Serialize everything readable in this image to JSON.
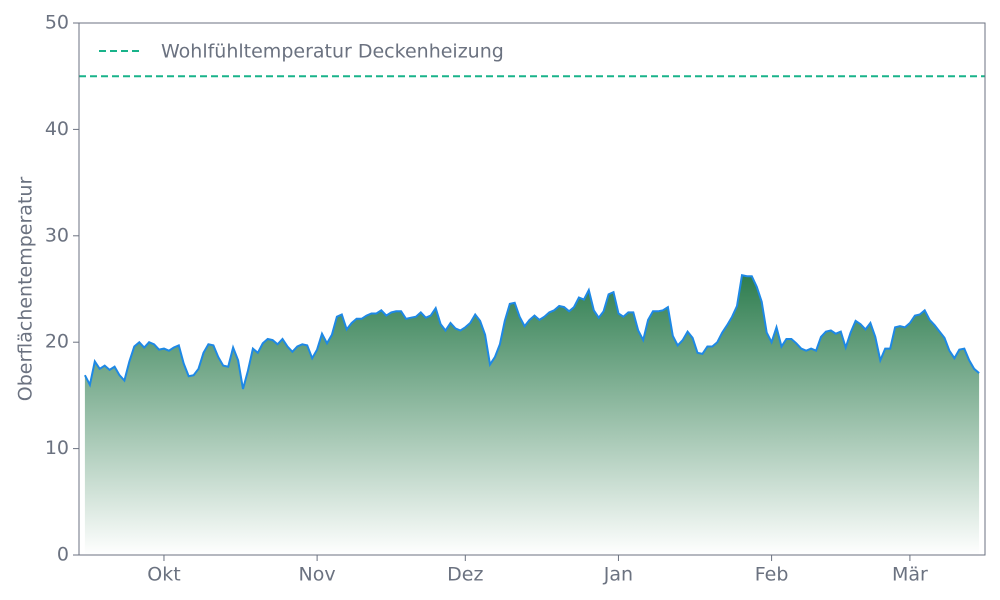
{
  "chart_data": {
    "type": "area",
    "y_label": "Oberflächentemperatur",
    "x": [
      -16,
      -15,
      -14,
      -13,
      -12,
      -11,
      -10,
      -9,
      -8,
      -7,
      -6,
      -5,
      -4,
      -3,
      -2,
      -1,
      0,
      1,
      2,
      3,
      4,
      5,
      6,
      7,
      8,
      9,
      10,
      11,
      12,
      13,
      14,
      15,
      16,
      17,
      18,
      19,
      20,
      21,
      22,
      23,
      24,
      25,
      26,
      27,
      28,
      29,
      30,
      31,
      32,
      33,
      34,
      35,
      36,
      37,
      38,
      39,
      40,
      41,
      42,
      43,
      44,
      45,
      46,
      47,
      48,
      49,
      50,
      51,
      52,
      53,
      54,
      55,
      56,
      57,
      58,
      59,
      60,
      61,
      62,
      63,
      64,
      65,
      66,
      67,
      68,
      69,
      70,
      71,
      72,
      73,
      74,
      75,
      76,
      77,
      78,
      79,
      80,
      81,
      82,
      83,
      84,
      85,
      86,
      87,
      88,
      89,
      90,
      91,
      92,
      93,
      94,
      95,
      96,
      97,
      98,
      99,
      100,
      101,
      102,
      103,
      104,
      105,
      106,
      107,
      108,
      109,
      110,
      111,
      112,
      113,
      114,
      115,
      116,
      117,
      118,
      119,
      120,
      121,
      122,
      123,
      124,
      125,
      126,
      127,
      128,
      129,
      130,
      131,
      132,
      133,
      134,
      135,
      136,
      137,
      138,
      139,
      140,
      141,
      142,
      143,
      144,
      145,
      146,
      147,
      148,
      149,
      150,
      151,
      152,
      153,
      154,
      155,
      156,
      157,
      158,
      159,
      160,
      161,
      162,
      163,
      164,
      165
    ],
    "values": [
      16.9,
      16.0,
      18.2,
      17.5,
      17.8,
      17.4,
      17.7,
      16.9,
      16.4,
      18.2,
      19.6,
      20.0,
      19.5,
      20.0,
      19.8,
      19.3,
      19.4,
      19.2,
      19.5,
      19.7,
      18.0,
      16.8,
      16.9,
      17.5,
      19.0,
      19.8,
      19.7,
      18.6,
      17.8,
      17.7,
      19.5,
      18.3,
      15.6,
      17.3,
      19.4,
      19.0,
      19.9,
      20.3,
      20.2,
      19.8,
      20.3,
      19.6,
      19.1,
      19.6,
      19.8,
      19.7,
      18.5,
      19.3,
      20.8,
      19.9,
      20.7,
      22.4,
      22.6,
      21.2,
      21.8,
      22.2,
      22.2,
      22.5,
      22.7,
      22.7,
      23.0,
      22.5,
      22.8,
      22.9,
      22.9,
      22.2,
      22.3,
      22.4,
      22.8,
      22.3,
      22.5,
      23.2,
      21.7,
      21.1,
      21.8,
      21.3,
      21.1,
      21.4,
      21.8,
      22.6,
      22.0,
      20.7,
      17.9,
      18.6,
      19.8,
      22.0,
      23.6,
      23.7,
      22.4,
      21.5,
      22.1,
      22.5,
      22.1,
      22.4,
      22.8,
      23.0,
      23.4,
      23.3,
      22.9,
      23.3,
      24.2,
      24.0,
      24.9,
      23.0,
      22.3,
      22.9,
      24.5,
      24.7,
      22.7,
      22.4,
      22.8,
      22.8,
      21.1,
      20.2,
      22.1,
      22.9,
      22.9,
      23.0,
      23.3,
      20.6,
      19.7,
      20.2,
      21.0,
      20.4,
      19.0,
      18.9,
      19.6,
      19.6,
      20.0,
      20.9,
      21.6,
      22.4,
      23.4,
      26.3,
      26.2,
      26.2,
      25.2,
      23.8,
      20.9,
      20.0,
      21.4,
      19.6,
      20.3,
      20.3,
      19.9,
      19.4,
      19.2,
      19.4,
      19.2,
      20.5,
      21.0,
      21.1,
      20.8,
      21.0,
      19.5,
      20.9,
      22.0,
      21.7,
      21.2,
      21.8,
      20.5,
      18.3,
      19.4,
      19.4,
      21.4,
      21.5,
      21.4,
      21.8,
      22.5,
      22.6,
      23.0,
      22.1,
      21.6,
      21.0,
      20.4,
      19.2,
      18.5,
      19.3,
      19.4,
      18.3,
      17.5,
      17.1
    ],
    "color": "#1e88e5",
    "fill_gradient": [
      "#2e7d4f",
      "#ffffff"
    ],
    "xlim": [
      -17.2,
      166.2
    ],
    "xticks": [
      {
        "value": 0,
        "label": "Okt"
      },
      {
        "value": 31,
        "label": "Nov"
      },
      {
        "value": 61,
        "label": "Dez"
      },
      {
        "value": 92,
        "label": "Jan"
      },
      {
        "value": 123,
        "label": "Feb"
      },
      {
        "value": 151,
        "label": "Mär"
      }
    ],
    "ylim": [
      0,
      50
    ],
    "yticks": [
      0,
      10,
      20,
      30,
      40,
      50
    ],
    "grid": false,
    "legend": "upper left",
    "reference_lines": [
      {
        "value": 45,
        "label": "Wohlfühltemperatur Deckenheizung",
        "color": "#19b38a",
        "style": "dashed"
      }
    ]
  }
}
